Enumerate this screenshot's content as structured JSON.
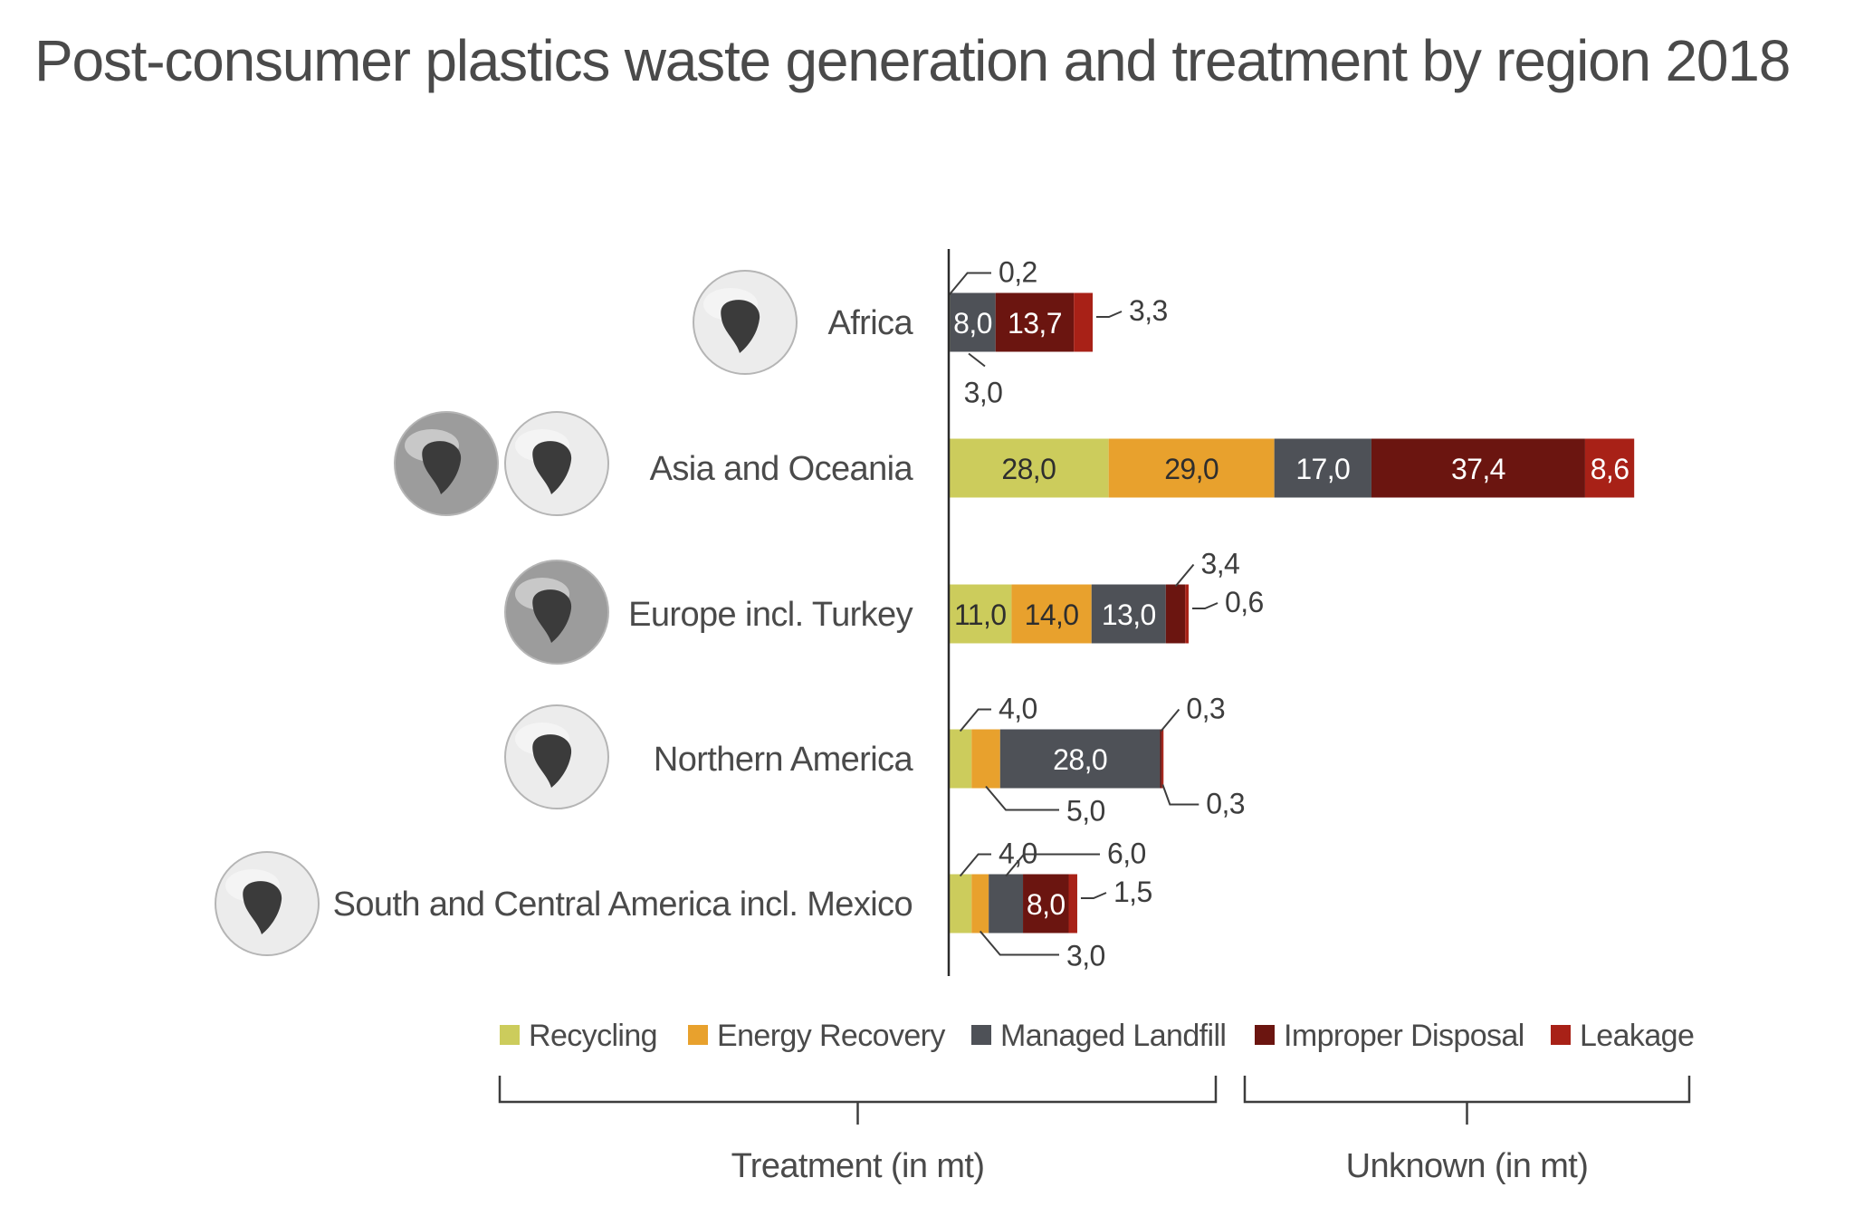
{
  "chart_data": {
    "type": "bar",
    "orientation": "horizontal",
    "stacked": true,
    "title": "Post-consumer plastics waste generation and treatment by region 2018",
    "categories": [
      "Africa",
      "Asia and Oceania",
      "Europe incl. Turkey",
      "Northern America",
      "South and Central America incl. Mexico"
    ],
    "series": [
      {
        "name": "Recycling",
        "group": "treatment",
        "color": "#cccc5c",
        "values": [
          0.2,
          28.0,
          11.0,
          4.0,
          4.0
        ],
        "labels": [
          "0,2",
          "28,0",
          "11,0",
          "4,0",
          "4,0"
        ]
      },
      {
        "name": "Energy Recovery",
        "group": "treatment",
        "color": "#e8a12d",
        "values": [
          0,
          29.0,
          14.0,
          5.0,
          3.0
        ],
        "labels": [
          "",
          "29,0",
          "14,0",
          "5,0",
          "3,0"
        ]
      },
      {
        "name": "Managed Landfill",
        "group": "treatment",
        "color": "#4e5157",
        "values": [
          8.0,
          17.0,
          13.0,
          28.0,
          6.0
        ],
        "labels": [
          "8,0",
          "17,0",
          "13,0",
          "28,0",
          "6,0"
        ]
      },
      {
        "name": "Improper Disposal",
        "group": "unknown",
        "color": "#6b1510",
        "values": [
          13.7,
          37.4,
          3.4,
          0.3,
          8.0
        ],
        "labels": [
          "13,7",
          "37,4",
          "3,4",
          "0,3",
          "8,0"
        ]
      },
      {
        "name": "Leakage",
        "group": "unknown",
        "color": "#a82117",
        "values": [
          3.3,
          8.6,
          0.6,
          0.3,
          1.5
        ],
        "labels": [
          "3,3",
          "8,6",
          "0,6",
          "0,3",
          "1,5"
        ]
      }
    ],
    "extra_labels": [
      {
        "category": "Africa",
        "text": "3,0"
      }
    ],
    "legend_groups": [
      {
        "label": "Treatment (in mt)",
        "series": [
          "Recycling",
          "Energy Recovery",
          "Managed Landfill"
        ]
      },
      {
        "label": "Unknown (in mt)",
        "series": [
          "Improper Disposal",
          "Leakage"
        ]
      }
    ],
    "legend_position": "bottom",
    "grid": false
  },
  "globe_icons": [
    [
      "africa-globe-icon"
    ],
    [
      "asia-globe-icon",
      "oceania-globe-icon"
    ],
    [
      "europe-globe-icon"
    ],
    [
      "north-america-globe-icon"
    ],
    [
      "south-america-globe-icon"
    ]
  ]
}
